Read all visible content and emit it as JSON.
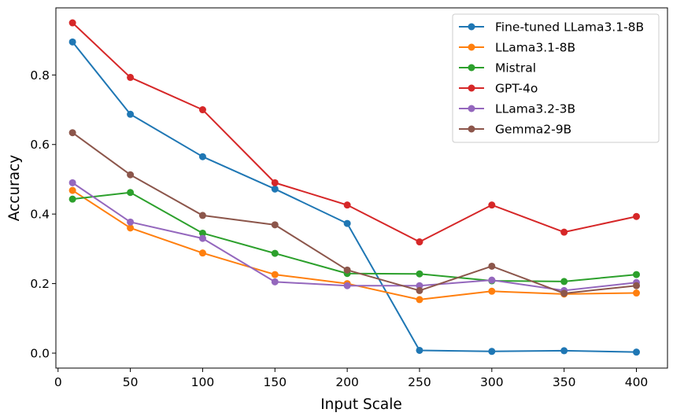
{
  "chart_data": {
    "type": "line",
    "title": "",
    "xlabel": "Input Scale",
    "ylabel": "Accuracy",
    "x": [
      10,
      50,
      100,
      150,
      200,
      250,
      300,
      350,
      400
    ],
    "xlim": [
      -1.5,
      421.5
    ],
    "ylim": [
      -0.043,
      0.993
    ],
    "xticks": [
      0,
      50,
      100,
      150,
      200,
      250,
      300,
      350,
      400
    ],
    "xtick_labels": [
      "0",
      "50",
      "100",
      "150",
      "200",
      "250",
      "300",
      "350",
      "400"
    ],
    "yticks": [
      0.0,
      0.2,
      0.4,
      0.6,
      0.8
    ],
    "ytick_labels": [
      "0.0",
      "0.2",
      "0.4",
      "0.6",
      "0.8"
    ],
    "grid": false,
    "legend_position": "top-right",
    "series": [
      {
        "name": "Fine-tuned LLama3.1-8B",
        "color": "#1f77b4",
        "values": [
          0.895,
          0.687,
          0.565,
          0.472,
          0.373,
          0.008,
          0.005,
          0.007,
          0.003
        ]
      },
      {
        "name": "LLama3.1-8B",
        "color": "#ff7f0e",
        "values": [
          0.468,
          0.36,
          0.288,
          0.226,
          0.2,
          0.154,
          0.178,
          0.17,
          0.173
        ]
      },
      {
        "name": "Mistral",
        "color": "#2ca02c",
        "values": [
          0.443,
          0.462,
          0.345,
          0.287,
          0.229,
          0.228,
          0.208,
          0.206,
          0.226
        ]
      },
      {
        "name": "GPT-4o",
        "color": "#d62728",
        "values": [
          0.95,
          0.793,
          0.7,
          0.49,
          0.426,
          0.32,
          0.426,
          0.348,
          0.393
        ]
      },
      {
        "name": "LLama3.2-3B",
        "color": "#9467bd",
        "values": [
          0.49,
          0.377,
          0.33,
          0.205,
          0.194,
          0.194,
          0.21,
          0.18,
          0.203
        ]
      },
      {
        "name": "Gemma2-9B",
        "color": "#8c564b",
        "values": [
          0.634,
          0.513,
          0.396,
          0.369,
          0.239,
          0.18,
          0.25,
          0.172,
          0.194
        ]
      }
    ]
  }
}
